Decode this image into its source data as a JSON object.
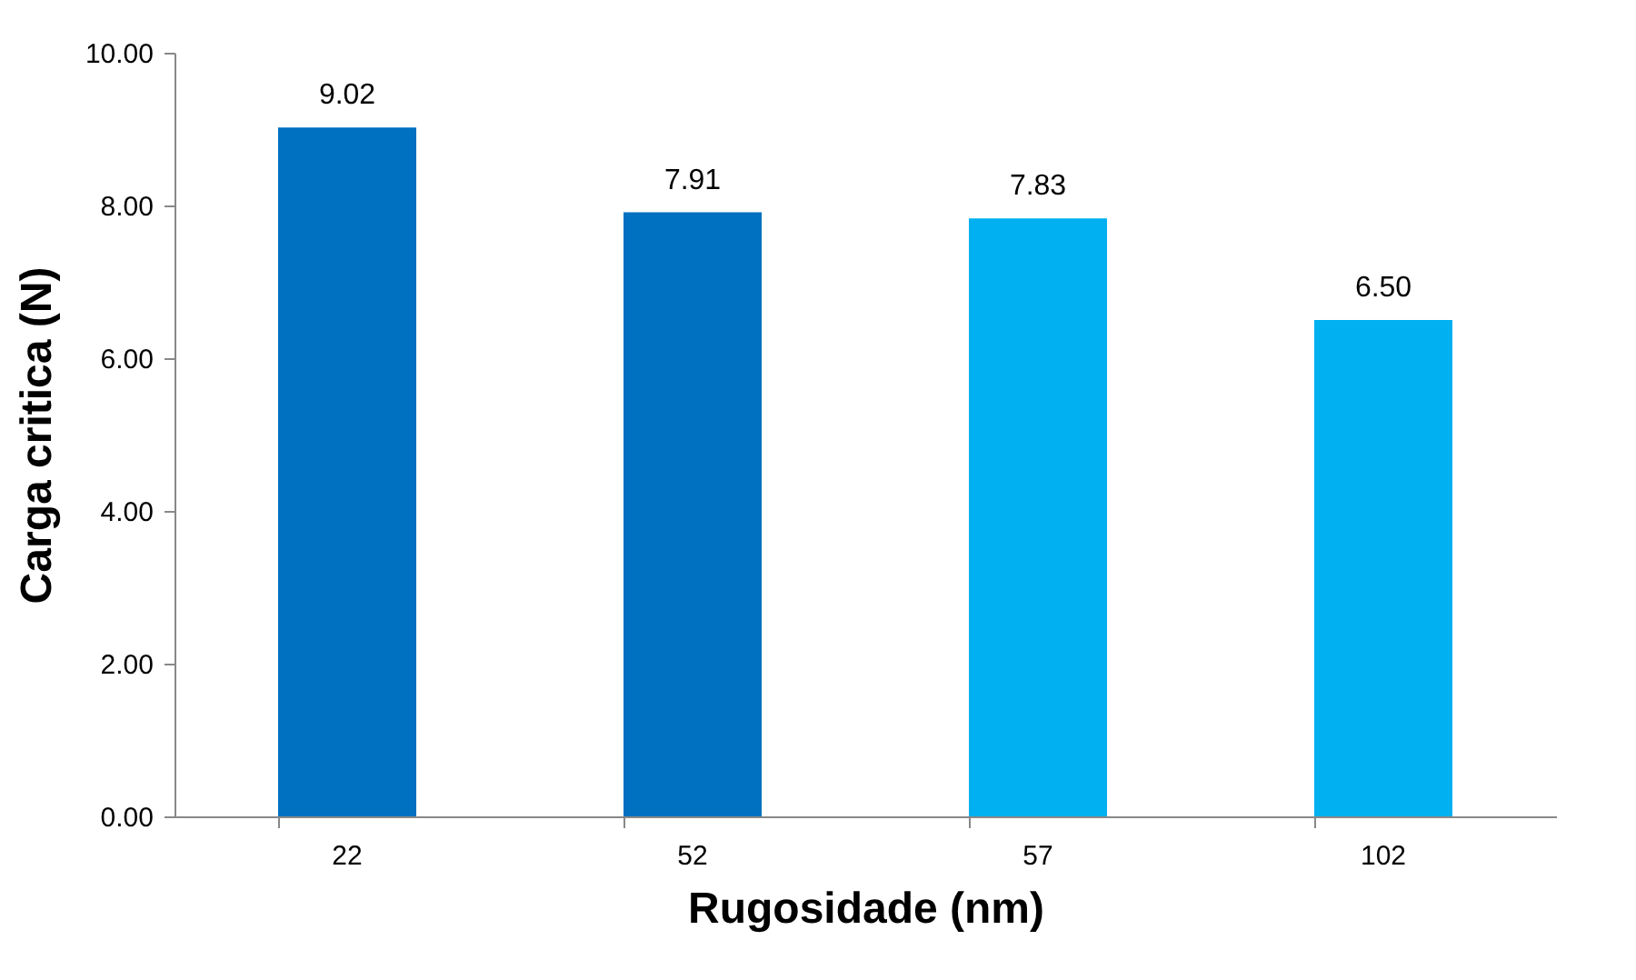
{
  "chart_data": {
    "type": "bar",
    "xlabel": "Rugosidade (nm)",
    "ylabel": "Carga critica (N)",
    "categories": [
      "22",
      "52",
      "57",
      "102"
    ],
    "values": [
      9.02,
      7.91,
      7.83,
      6.5
    ],
    "colors": [
      "#0070c0",
      "#0070c0",
      "#00b0f0",
      "#00b0f0"
    ],
    "value_labels": [
      "9.02",
      "7.91",
      "7.83",
      "6.50"
    ],
    "ylim": [
      0,
      10
    ],
    "yticks": [
      {
        "value": 0,
        "label": "0.00"
      },
      {
        "value": 2,
        "label": "2.00"
      },
      {
        "value": 4,
        "label": "4.00"
      },
      {
        "value": 6,
        "label": "6.00"
      },
      {
        "value": 8,
        "label": "8.00"
      },
      {
        "value": 10,
        "label": "10.00"
      }
    ],
    "grid": false
  }
}
